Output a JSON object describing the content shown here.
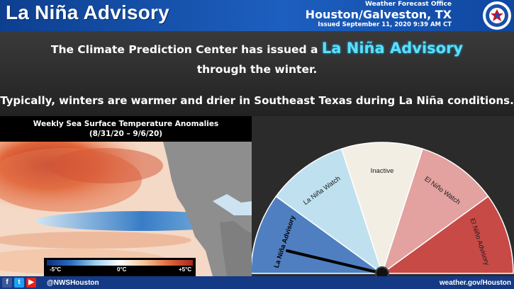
{
  "header": {
    "title": "La Niña Advisory",
    "office_line1": "Weather Forecast Office",
    "office_line2": "Houston/Galveston, TX",
    "issued": "Issued September 11, 2020 9:39 AM CT",
    "logo_icon": "nws-logo-icon"
  },
  "main": {
    "line1_prefix": "The Climate Prediction Center has issued a",
    "line1_highlight": "La Niña Advisory",
    "line2": "through the winter.",
    "line3": "Typically, winters are warmer and drier in Southeast Texas during La Niña conditions."
  },
  "map": {
    "title": "Weekly Sea Surface Temperature Anomalies",
    "dates": "(8/31/20 – 9/6/20)",
    "colorbar": {
      "min_label": "-5°C",
      "mid_label": "0°C",
      "max_label": "+5°C"
    }
  },
  "gauge": {
    "segments": [
      {
        "label": "La Niña Advisory",
        "color": "#4f7fc0"
      },
      {
        "label": "La Niña Watch",
        "color": "#bfe0ef"
      },
      {
        "label": "Inactive",
        "color": "#f2eee4"
      },
      {
        "label": "El Niño Watch",
        "color": "#e3a1a0"
      },
      {
        "label": "El Niño Advisory",
        "color": "#c84a47"
      }
    ],
    "needle_points_to": "La Niña Advisory"
  },
  "footer": {
    "icons": [
      "facebook-icon",
      "twitter-icon",
      "youtube-icon"
    ],
    "handle": "@NWSHouston",
    "website": "weather.gov/Houston"
  }
}
